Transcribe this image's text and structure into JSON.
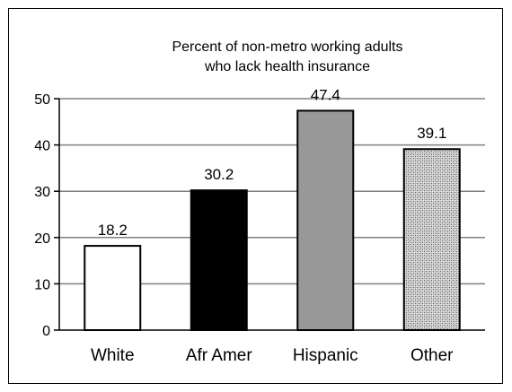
{
  "chart_data": {
    "type": "bar",
    "title_lines": [
      "Percent of non-metro working adults",
      "who lack health insurance"
    ],
    "categories": [
      "White",
      "Afr Amer",
      "Hispanic",
      "Other"
    ],
    "values": [
      18.2,
      30.2,
      47.4,
      39.1
    ],
    "data_labels": [
      "18.2",
      "30.2",
      "47.4",
      "39.1"
    ],
    "bar_fills": [
      "#ffffff",
      "#000000",
      "#999999",
      "pattern"
    ],
    "yticks": [
      0,
      10,
      20,
      30,
      40,
      50
    ],
    "ylim": [
      0,
      50
    ],
    "grid": true,
    "legend": "none"
  }
}
